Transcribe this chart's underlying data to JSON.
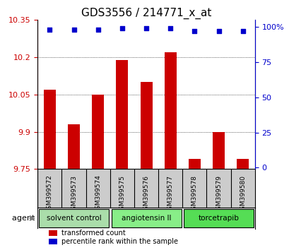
{
  "title": "GDS3556 / 214771_x_at",
  "samples": [
    "GSM399572",
    "GSM399573",
    "GSM399574",
    "GSM399575",
    "GSM399576",
    "GSM399577",
    "GSM399578",
    "GSM399579",
    "GSM399580"
  ],
  "transformed_count": [
    10.07,
    9.93,
    10.05,
    10.19,
    10.1,
    10.22,
    9.79,
    9.9,
    9.79
  ],
  "percentile_rank": [
    98,
    98,
    98,
    99,
    99,
    99,
    97,
    97,
    97
  ],
  "ylim": [
    9.75,
    10.35
  ],
  "yticks": [
    9.75,
    9.9,
    10.05,
    10.2,
    10.35
  ],
  "right_yticks": [
    0,
    25,
    50,
    75,
    100
  ],
  "bar_color": "#cc0000",
  "dot_color": "#0000cc",
  "agent_groups": [
    {
      "label": "solvent control",
      "start": 0,
      "end": 3,
      "color": "#aaddaa"
    },
    {
      "label": "angiotensin II",
      "start": 3,
      "end": 6,
      "color": "#88ee88"
    },
    {
      "label": "torcetrapib",
      "start": 6,
      "end": 9,
      "color": "#55dd55"
    }
  ],
  "agent_label": "agent",
  "legend_red": "transformed count",
  "legend_blue": "percentile rank within the sample",
  "left_axis_color": "#cc0000",
  "right_axis_color": "#0000cc",
  "bg_plot": "#ffffff",
  "bg_sample_row": "#cccccc",
  "grid_color": "#000000",
  "bar_width": 0.5
}
